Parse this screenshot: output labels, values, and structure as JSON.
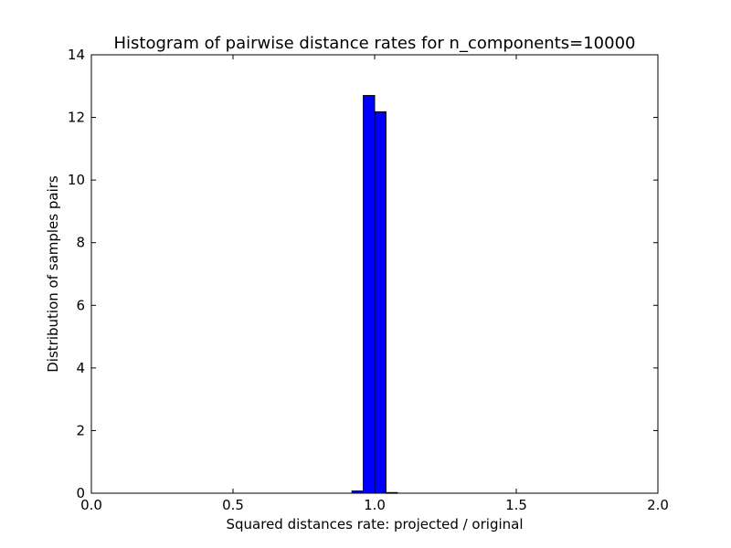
{
  "chart_data": {
    "type": "bar",
    "title": "Histogram of pairwise distance rates for n_components=10000",
    "xlabel": "Squared distances rate: projected / original",
    "ylabel": "Distribution of samples pairs",
    "xlim": [
      0.0,
      2.0
    ],
    "ylim": [
      0,
      14
    ],
    "xticks": [
      0.0,
      0.5,
      1.0,
      1.5,
      2.0
    ],
    "xtick_labels": [
      "0.0",
      "0.5",
      "1.0",
      "1.5",
      "2.0"
    ],
    "yticks": [
      0,
      2,
      4,
      6,
      8,
      10,
      12,
      14
    ],
    "ytick_labels": [
      "0",
      "2",
      "4",
      "6",
      "8",
      "10",
      "12",
      "14"
    ],
    "grid": false,
    "bar_color": "#0000ff",
    "bins": [
      {
        "x0": 0.92,
        "x1": 0.96,
        "value": 0.07
      },
      {
        "x0": 0.96,
        "x1": 1.0,
        "value": 12.7
      },
      {
        "x0": 1.0,
        "x1": 1.04,
        "value": 12.18
      },
      {
        "x0": 1.04,
        "x1": 1.08,
        "value": 0.02
      }
    ]
  }
}
